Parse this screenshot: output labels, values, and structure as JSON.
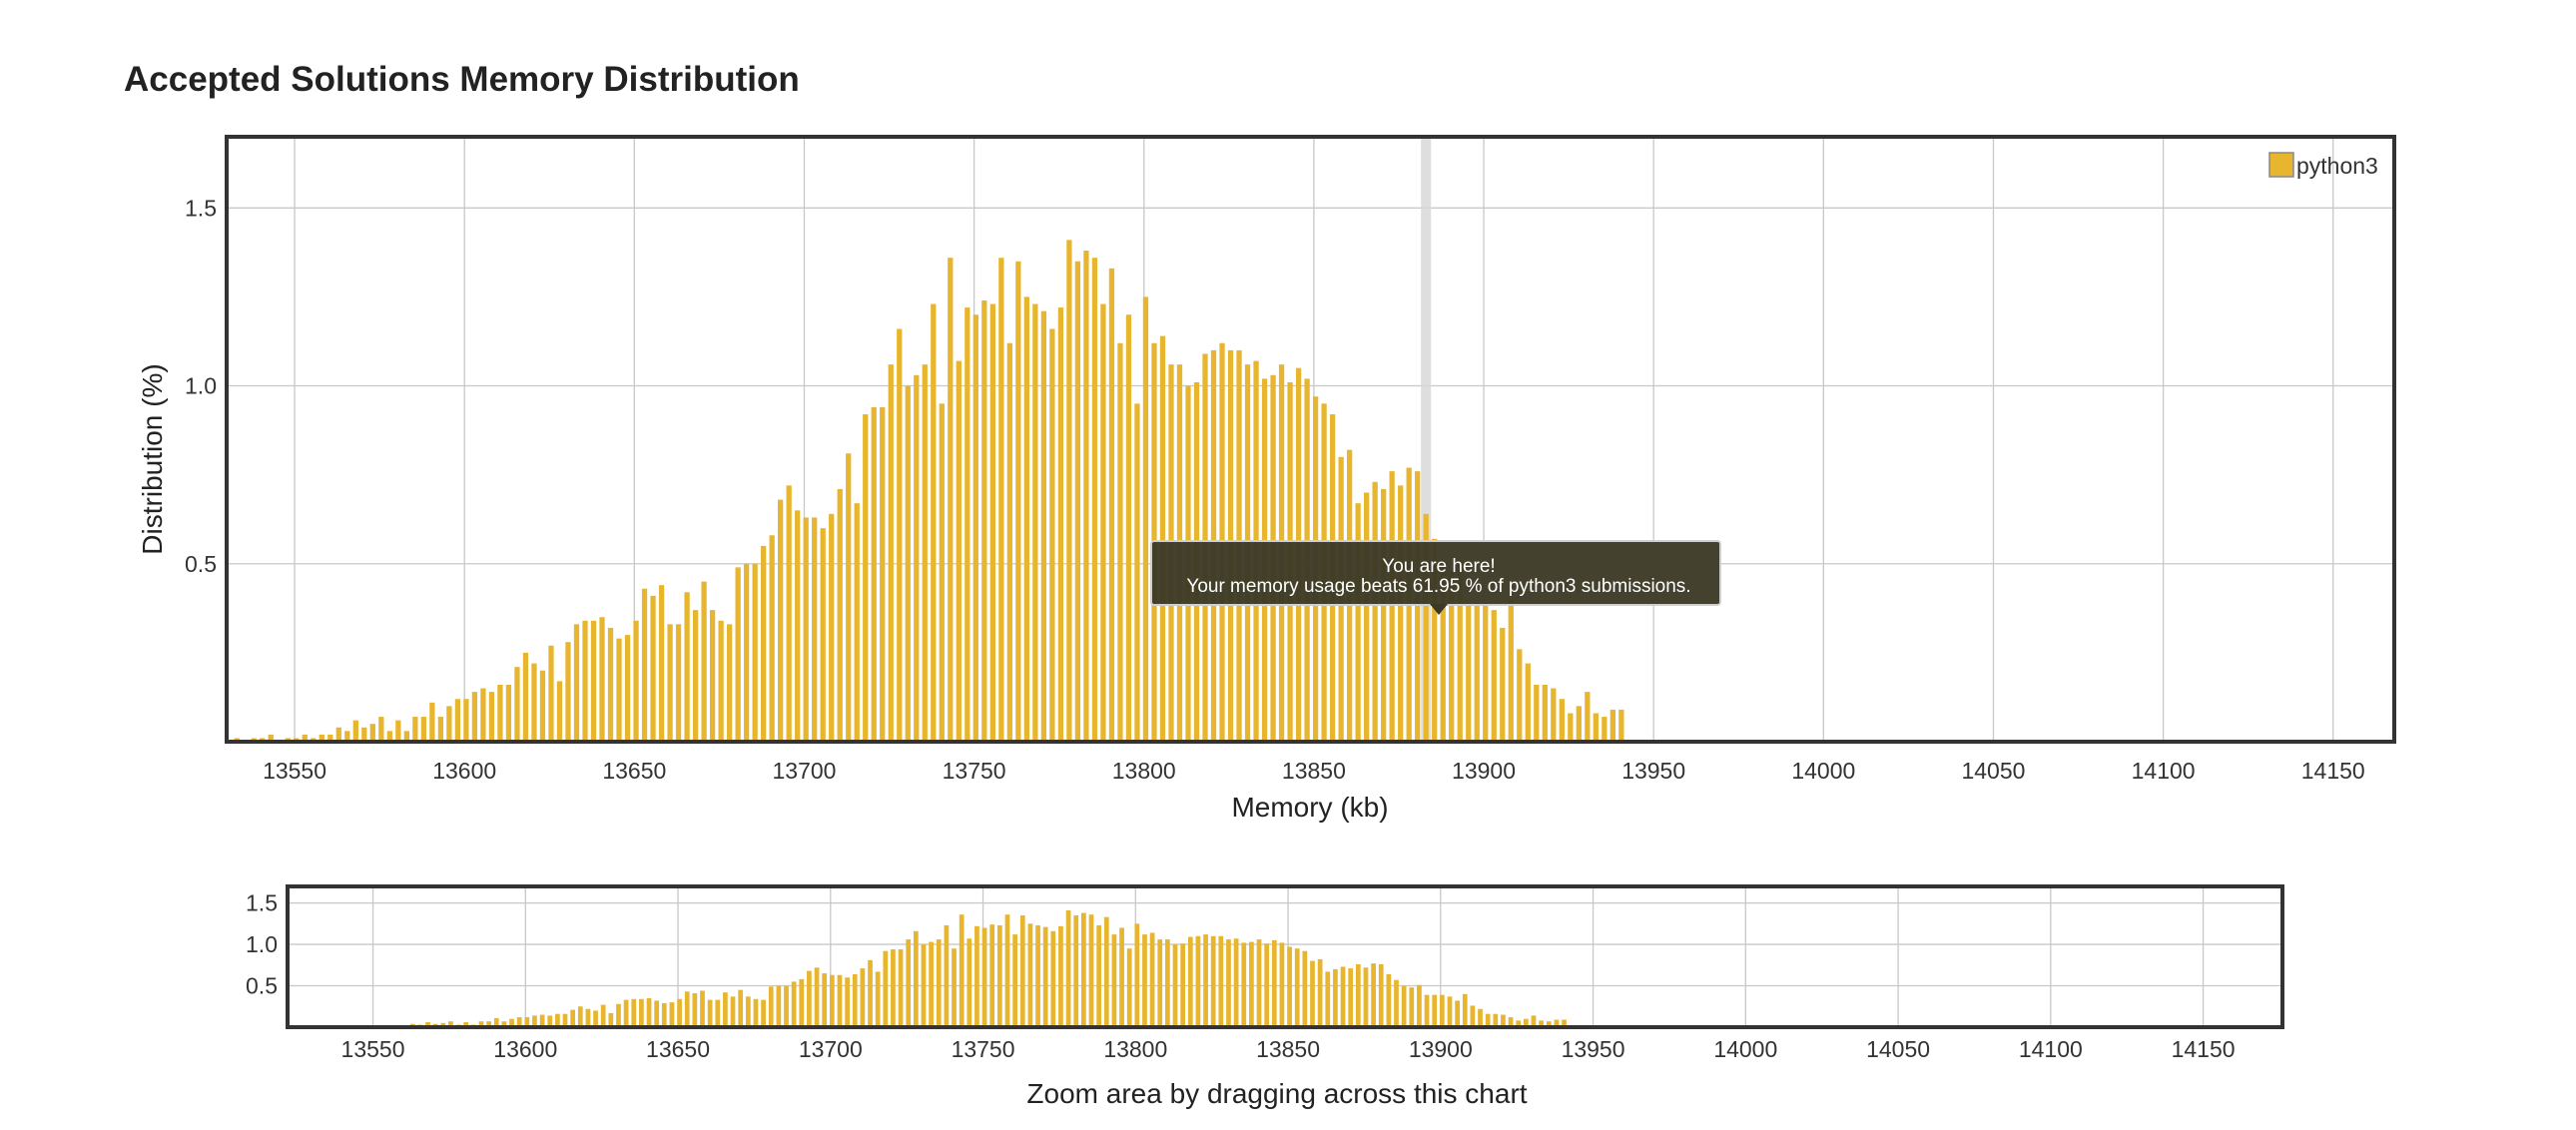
{
  "page": {
    "title": "Accepted Solutions Memory Distribution"
  },
  "chart_data": [
    {
      "type": "bar",
      "name": "main",
      "xlabel": "Memory (kb)",
      "ylabel": "Distribution (%)",
      "xlim": [
        13530,
        14168
      ],
      "ylim": [
        0,
        1.7
      ],
      "xticks": [
        13550,
        13600,
        13650,
        13700,
        13750,
        13800,
        13850,
        13900,
        13950,
        14000,
        14050,
        14100,
        14150
      ],
      "yticks": [
        0.5,
        1.0,
        1.5
      ],
      "ytick_labels": [
        "0.5",
        "1.0",
        "1.5"
      ],
      "grid": true,
      "legend": {
        "position": "top-right",
        "entries": [
          "python3"
        ]
      },
      "series": [
        {
          "name": "python3",
          "color": "#e8b52e",
          "x_start": 13533,
          "x_step": 2.5,
          "values": [
            0.01,
            0,
            0.01,
            0.01,
            0.02,
            0,
            0.01,
            0.01,
            0.02,
            0.01,
            0.02,
            0.02,
            0.04,
            0.03,
            0.06,
            0.04,
            0.05,
            0.07,
            0.03,
            0.06,
            0.03,
            0.07,
            0.07,
            0.11,
            0.07,
            0.1,
            0.12,
            0.12,
            0.14,
            0.15,
            0.14,
            0.16,
            0.16,
            0.21,
            0.25,
            0.22,
            0.2,
            0.27,
            0.17,
            0.28,
            0.33,
            0.34,
            0.34,
            0.35,
            0.32,
            0.29,
            0.3,
            0.34,
            0.43,
            0.41,
            0.44,
            0.33,
            0.33,
            0.42,
            0.37,
            0.45,
            0.37,
            0.34,
            0.33,
            0.49,
            0.5,
            0.5,
            0.55,
            0.58,
            0.68,
            0.72,
            0.65,
            0.63,
            0.63,
            0.6,
            0.64,
            0.71,
            0.81,
            0.67,
            0.92,
            0.94,
            0.94,
            1.06,
            1.16,
            1.0,
            1.03,
            1.06,
            1.23,
            0.95,
            1.36,
            1.07,
            1.22,
            1.2,
            1.24,
            1.23,
            1.36,
            1.12,
            1.35,
            1.25,
            1.23,
            1.21,
            1.16,
            1.22,
            1.41,
            1.35,
            1.38,
            1.36,
            1.23,
            1.33,
            1.12,
            1.2,
            0.95,
            1.25,
            1.12,
            1.14,
            1.06,
            1.06,
            1.0,
            1.01,
            1.09,
            1.1,
            1.12,
            1.1,
            1.1,
            1.06,
            1.07,
            1.02,
            1.03,
            1.06,
            1.01,
            1.05,
            1.02,
            0.97,
            0.95,
            0.92,
            0.8,
            0.82,
            0.67,
            0.7,
            0.73,
            0.71,
            0.76,
            0.72,
            0.77,
            0.76,
            0.64,
            0.57,
            0.5,
            0.48,
            0.51,
            0.39,
            0.39,
            0.39,
            0.37,
            0.32,
            0.4,
            0.26,
            0.22,
            0.16,
            0.16,
            0.15,
            0.12,
            0.08,
            0.1,
            0.14,
            0.08,
            0.07,
            0.09,
            0.09
          ]
        }
      ],
      "highlight": {
        "x": 13883
      },
      "tooltip": {
        "line1": "You are here!",
        "line2": "Your memory usage beats 61.95 % of python3 submissions."
      }
    },
    {
      "type": "bar",
      "name": "navigator",
      "xlim": [
        13522,
        14176
      ],
      "ylim": [
        0,
        1.7
      ],
      "xticks": [
        13550,
        13600,
        13650,
        13700,
        13750,
        13800,
        13850,
        13900,
        13950,
        14000,
        14050,
        14100,
        14150
      ],
      "yticks": [
        0.5,
        1.0,
        1.5
      ],
      "ytick_labels": [
        "0.5",
        "1.0",
        "1.5"
      ],
      "caption": "Zoom area by dragging across this chart"
    }
  ]
}
